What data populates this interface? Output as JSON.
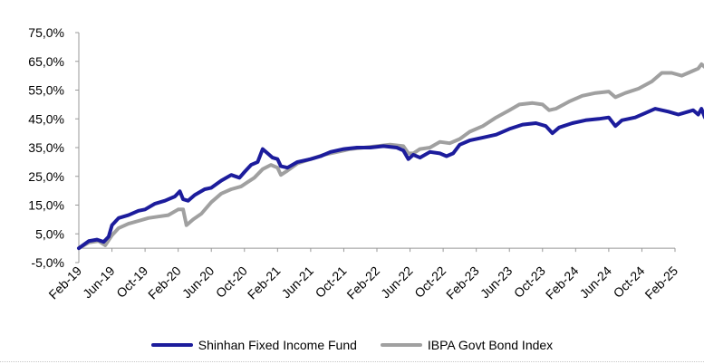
{
  "chart_data": {
    "type": "line",
    "title": "",
    "xlabel": "",
    "ylabel": "",
    "ylim": [
      -5,
      75
    ],
    "yticks": [
      "-5,0%",
      "5,0%",
      "15,0%",
      "25,0%",
      "35,0%",
      "45,0%",
      "55,0%",
      "65,0%",
      "75,0%"
    ],
    "ytick_values": [
      -5,
      5,
      15,
      25,
      35,
      45,
      55,
      65,
      75
    ],
    "grid": false,
    "legend_position": "bottom",
    "categories": [
      "Feb-19",
      "Jun-19",
      "Oct-19",
      "Feb-20",
      "Jun-20",
      "Oct-20",
      "Feb-21",
      "Jun-21",
      "Oct-21",
      "Feb-22",
      "Jun-22",
      "Oct-22",
      "Feb-23",
      "Jun-23",
      "Oct-23",
      "Feb-24",
      "Jun-24",
      "Oct-24",
      "Feb-25"
    ],
    "series": [
      {
        "name": "Shinhan Fixed Income Fund",
        "color": "#1c1c9c",
        "points": [
          [
            0,
            0
          ],
          [
            0.3,
            2.5
          ],
          [
            0.55,
            3.0
          ],
          [
            0.75,
            2.2
          ],
          [
            0.9,
            4.0
          ],
          [
            1.0,
            8.0
          ],
          [
            1.2,
            10.5
          ],
          [
            1.5,
            11.5
          ],
          [
            1.8,
            13.0
          ],
          [
            2.0,
            13.5
          ],
          [
            2.3,
            15.5
          ],
          [
            2.6,
            16.5
          ],
          [
            2.9,
            18.0
          ],
          [
            3.05,
            19.8
          ],
          [
            3.15,
            17.0
          ],
          [
            3.3,
            16.5
          ],
          [
            3.5,
            18.5
          ],
          [
            3.8,
            20.5
          ],
          [
            4.0,
            21.0
          ],
          [
            4.3,
            23.5
          ],
          [
            4.6,
            25.5
          ],
          [
            4.85,
            24.5
          ],
          [
            5.0,
            26.5
          ],
          [
            5.2,
            29.0
          ],
          [
            5.4,
            30.0
          ],
          [
            5.55,
            34.5
          ],
          [
            5.7,
            33.0
          ],
          [
            5.85,
            31.5
          ],
          [
            6.0,
            31.0
          ],
          [
            6.1,
            28.5
          ],
          [
            6.3,
            28.0
          ],
          [
            6.6,
            30.0
          ],
          [
            7.0,
            31.0
          ],
          [
            7.3,
            32.0
          ],
          [
            7.6,
            33.5
          ],
          [
            8.0,
            34.5
          ],
          [
            8.4,
            35.0
          ],
          [
            8.8,
            35.0
          ],
          [
            9.2,
            35.5
          ],
          [
            9.6,
            35.0
          ],
          [
            9.8,
            34.0
          ],
          [
            9.95,
            31.0
          ],
          [
            10.1,
            32.5
          ],
          [
            10.3,
            31.5
          ],
          [
            10.6,
            33.5
          ],
          [
            10.9,
            33.0
          ],
          [
            11.1,
            32.0
          ],
          [
            11.3,
            33.0
          ],
          [
            11.5,
            36.0
          ],
          [
            11.8,
            37.5
          ],
          [
            12.2,
            38.5
          ],
          [
            12.6,
            39.5
          ],
          [
            13.0,
            41.5
          ],
          [
            13.4,
            43.0
          ],
          [
            13.8,
            43.5
          ],
          [
            14.1,
            42.5
          ],
          [
            14.3,
            40.0
          ],
          [
            14.5,
            42.0
          ],
          [
            14.9,
            43.5
          ],
          [
            15.3,
            44.5
          ],
          [
            15.7,
            45.0
          ],
          [
            16.0,
            45.5
          ],
          [
            16.2,
            42.5
          ],
          [
            16.4,
            44.5
          ],
          [
            16.8,
            45.5
          ],
          [
            17.1,
            47.0
          ],
          [
            17.4,
            48.5
          ],
          [
            17.8,
            47.5
          ],
          [
            18.1,
            46.5
          ],
          [
            18.4,
            47.5
          ],
          [
            18.55,
            48.0
          ],
          [
            18.7,
            46.5
          ],
          [
            18.8,
            48.5
          ],
          [
            18.9,
            45.5
          ]
        ]
      },
      {
        "name": "IBPA Govt Bond Index",
        "color": "#a0a0a0",
        "points": [
          [
            0,
            0
          ],
          [
            0.3,
            2.0
          ],
          [
            0.6,
            2.5
          ],
          [
            0.8,
            1.0
          ],
          [
            1.0,
            4.5
          ],
          [
            1.2,
            7.0
          ],
          [
            1.5,
            8.5
          ],
          [
            1.8,
            9.5
          ],
          [
            2.1,
            10.5
          ],
          [
            2.4,
            11.0
          ],
          [
            2.7,
            11.5
          ],
          [
            3.0,
            13.5
          ],
          [
            3.15,
            13.5
          ],
          [
            3.25,
            8.0
          ],
          [
            3.45,
            10.0
          ],
          [
            3.7,
            12.0
          ],
          [
            4.0,
            16.0
          ],
          [
            4.3,
            19.0
          ],
          [
            4.6,
            20.5
          ],
          [
            4.9,
            21.5
          ],
          [
            5.1,
            23.0
          ],
          [
            5.3,
            24.5
          ],
          [
            5.55,
            27.5
          ],
          [
            5.8,
            29.0
          ],
          [
            6.0,
            28.0
          ],
          [
            6.1,
            25.5
          ],
          [
            6.3,
            27.0
          ],
          [
            6.6,
            29.5
          ],
          [
            7.0,
            31.0
          ],
          [
            7.4,
            32.5
          ],
          [
            7.8,
            33.5
          ],
          [
            8.2,
            34.5
          ],
          [
            8.6,
            35.0
          ],
          [
            9.0,
            35.5
          ],
          [
            9.4,
            36.0
          ],
          [
            9.8,
            35.5
          ],
          [
            9.95,
            33.0
          ],
          [
            10.1,
            33.0
          ],
          [
            10.3,
            34.5
          ],
          [
            10.6,
            35.0
          ],
          [
            10.9,
            37.0
          ],
          [
            11.2,
            36.5
          ],
          [
            11.5,
            38.0
          ],
          [
            11.8,
            40.5
          ],
          [
            12.2,
            42.5
          ],
          [
            12.6,
            45.5
          ],
          [
            13.0,
            48.0
          ],
          [
            13.3,
            50.0
          ],
          [
            13.7,
            50.5
          ],
          [
            14.0,
            50.0
          ],
          [
            14.2,
            48.0
          ],
          [
            14.4,
            48.5
          ],
          [
            14.8,
            51.0
          ],
          [
            15.2,
            53.0
          ],
          [
            15.6,
            54.0
          ],
          [
            16.0,
            54.5
          ],
          [
            16.2,
            52.5
          ],
          [
            16.5,
            54.0
          ],
          [
            16.9,
            55.5
          ],
          [
            17.3,
            58.0
          ],
          [
            17.6,
            61.0
          ],
          [
            17.9,
            61.0
          ],
          [
            18.2,
            60.0
          ],
          [
            18.5,
            61.5
          ],
          [
            18.7,
            62.5
          ],
          [
            18.8,
            64.0
          ],
          [
            18.9,
            63.0
          ]
        ]
      }
    ]
  }
}
